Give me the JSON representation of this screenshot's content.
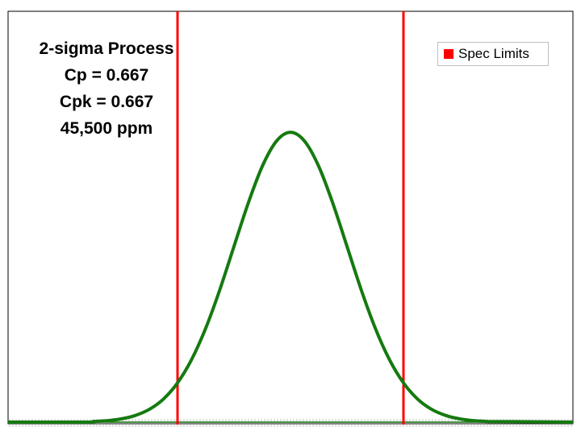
{
  "chart_data": {
    "type": "line",
    "title": "",
    "xlabel": "",
    "ylabel": "",
    "xlim": [
      -5,
      5
    ],
    "ylim": [
      0,
      0.5
    ],
    "grid": false,
    "legend_position": "top-right",
    "annotation_lines": [
      "2-sigma Process",
      "Cp = 0.667",
      "Cpk = 0.667",
      "45,500 ppm"
    ],
    "series": [
      {
        "name": "",
        "color": "#157a10",
        "x": [
          -3.5,
          -3.25,
          -3.0,
          -2.75,
          -2.5,
          -2.25,
          -2.0,
          -1.75,
          -1.5,
          -1.25,
          -1.0,
          -0.75,
          -0.5,
          -0.25,
          0.0,
          0.25,
          0.5,
          0.75,
          1.0,
          1.25,
          1.5,
          1.75,
          2.0,
          2.25,
          2.5,
          2.75,
          3.0,
          3.25,
          3.5
        ],
        "y": [
          0.0009,
          0.002,
          0.0044,
          0.0091,
          0.0175,
          0.0317,
          0.054,
          0.0863,
          0.1295,
          0.1826,
          0.242,
          0.3011,
          0.3521,
          0.3867,
          0.3989,
          0.3867,
          0.3521,
          0.3011,
          0.242,
          0.1826,
          0.1295,
          0.0863,
          0.054,
          0.0317,
          0.0175,
          0.0091,
          0.0044,
          0.002,
          0.0009
        ]
      }
    ],
    "spec_limits": {
      "name": "Spec Limits",
      "color": "#ff0000",
      "lsl": -2,
      "usl": 2
    }
  }
}
